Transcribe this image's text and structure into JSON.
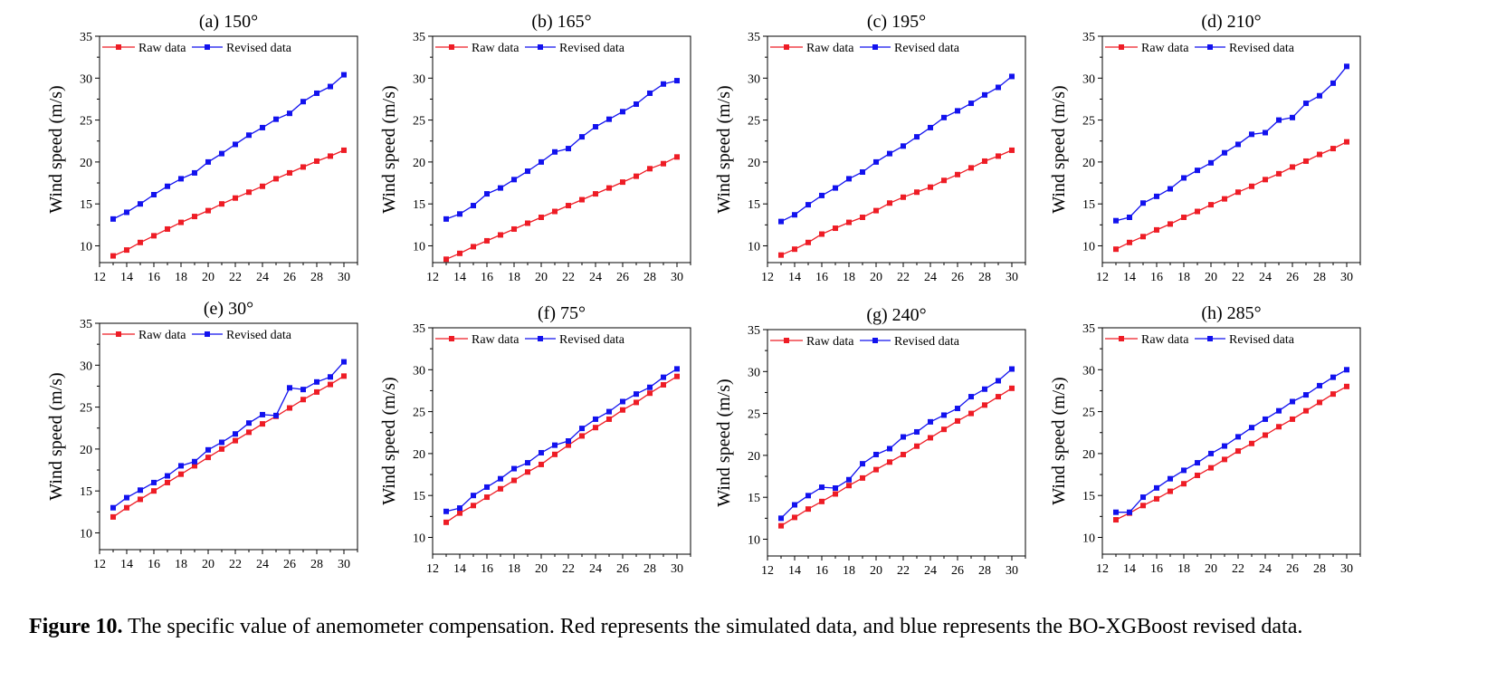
{
  "caption": {
    "label": "Figure 10.",
    "text": " The specific value of anemometer compensation. Red represents the simulated data, and blue represents the BO-XGBoost revised data."
  },
  "colors": {
    "raw": "#ee1c25",
    "revised": "#1212ee"
  },
  "chart_data": [
    {
      "type": "line",
      "title": "(a) 150°",
      "xlabel": "",
      "ylabel": "Wind speed (m/s)",
      "xlim": [
        12,
        31
      ],
      "ylim": [
        8,
        35
      ],
      "grid": false,
      "legend": "top-left",
      "x": [
        13,
        14,
        15,
        16,
        17,
        18,
        19,
        20,
        21,
        22,
        23,
        24,
        25,
        26,
        27,
        28,
        29,
        30
      ],
      "series": [
        {
          "name": "Raw data",
          "values": [
            8.8,
            9.5,
            10.4,
            11.2,
            12.0,
            12.8,
            13.5,
            14.2,
            15.0,
            15.7,
            16.4,
            17.1,
            18.0,
            18.7,
            19.4,
            20.1,
            20.7,
            21.4
          ]
        },
        {
          "name": "Revised data",
          "values": [
            13.2,
            14.0,
            15.0,
            16.1,
            17.1,
            18.0,
            18.7,
            20.0,
            21.0,
            22.1,
            23.2,
            24.1,
            25.1,
            25.8,
            27.2,
            28.2,
            29.0,
            30.4
          ]
        }
      ]
    },
    {
      "type": "line",
      "title": "(b) 165°",
      "xlabel": "",
      "ylabel": "Wind speed (m/s)",
      "xlim": [
        12,
        31
      ],
      "ylim": [
        8,
        35
      ],
      "grid": false,
      "legend": "top-left",
      "x": [
        13,
        14,
        15,
        16,
        17,
        18,
        19,
        20,
        21,
        22,
        23,
        24,
        25,
        26,
        27,
        28,
        29,
        30
      ],
      "series": [
        {
          "name": "Raw data",
          "values": [
            8.4,
            9.1,
            9.9,
            10.6,
            11.3,
            12.0,
            12.7,
            13.4,
            14.1,
            14.8,
            15.5,
            16.2,
            16.9,
            17.6,
            18.3,
            19.2,
            19.8,
            20.6
          ]
        },
        {
          "name": "Revised data",
          "values": [
            13.2,
            13.8,
            14.8,
            16.2,
            16.9,
            17.9,
            18.9,
            20.0,
            21.2,
            21.6,
            23.0,
            24.2,
            25.1,
            26.0,
            26.9,
            28.2,
            29.3,
            29.7
          ]
        }
      ]
    },
    {
      "type": "line",
      "title": "(c) 195°",
      "xlabel": "",
      "ylabel": "Wind speed (m/s)",
      "xlim": [
        12,
        31
      ],
      "ylim": [
        8,
        35
      ],
      "grid": false,
      "legend": "top-left",
      "x": [
        13,
        14,
        15,
        16,
        17,
        18,
        19,
        20,
        21,
        22,
        23,
        24,
        25,
        26,
        27,
        28,
        29,
        30
      ],
      "series": [
        {
          "name": "Raw data",
          "values": [
            8.9,
            9.6,
            10.4,
            11.4,
            12.1,
            12.8,
            13.4,
            14.2,
            15.1,
            15.8,
            16.4,
            17.0,
            17.8,
            18.5,
            19.3,
            20.1,
            20.7,
            21.4
          ]
        },
        {
          "name": "Revised data",
          "values": [
            12.9,
            13.7,
            14.9,
            16.0,
            16.9,
            18.0,
            18.8,
            20.0,
            21.0,
            21.9,
            23.0,
            24.1,
            25.3,
            26.1,
            27.0,
            28.0,
            28.9,
            30.2
          ]
        }
      ]
    },
    {
      "type": "line",
      "title": "(d) 210°",
      "xlabel": "",
      "ylabel": "Wind speed (m/s)",
      "xlim": [
        12,
        31
      ],
      "ylim": [
        8,
        35
      ],
      "grid": false,
      "legend": "top-left",
      "x": [
        13,
        14,
        15,
        16,
        17,
        18,
        19,
        20,
        21,
        22,
        23,
        24,
        25,
        26,
        27,
        28,
        29,
        30
      ],
      "series": [
        {
          "name": "Raw data",
          "values": [
            9.6,
            10.4,
            11.1,
            11.9,
            12.6,
            13.4,
            14.1,
            14.9,
            15.6,
            16.4,
            17.1,
            17.9,
            18.6,
            19.4,
            20.1,
            20.9,
            21.6,
            22.4
          ]
        },
        {
          "name": "Revised data",
          "values": [
            13.0,
            13.4,
            15.1,
            15.9,
            16.8,
            18.1,
            19.0,
            19.9,
            21.1,
            22.1,
            23.3,
            23.5,
            25.0,
            25.3,
            27.0,
            27.9,
            29.4,
            31.4
          ]
        }
      ]
    },
    {
      "type": "line",
      "title": "(e) 30°",
      "xlabel": "",
      "ylabel": "Wind speed (m/s)",
      "xlim": [
        12,
        31
      ],
      "ylim": [
        8,
        35
      ],
      "grid": false,
      "legend": "top-left",
      "x": [
        13,
        14,
        15,
        16,
        17,
        18,
        19,
        20,
        21,
        22,
        23,
        24,
        25,
        26,
        27,
        28,
        29,
        30
      ],
      "series": [
        {
          "name": "Raw data",
          "values": [
            11.9,
            13.0,
            14.0,
            15.0,
            16.0,
            17.0,
            18.0,
            19.0,
            20.0,
            21.0,
            22.0,
            23.0,
            23.9,
            24.9,
            25.9,
            26.8,
            27.7,
            28.7
          ]
        },
        {
          "name": "Revised data",
          "values": [
            13.0,
            14.2,
            15.1,
            16.0,
            16.8,
            18.0,
            18.5,
            19.9,
            20.8,
            21.8,
            23.1,
            24.1,
            24.0,
            27.3,
            27.1,
            28.0,
            28.6,
            30.4
          ]
        }
      ]
    },
    {
      "type": "line",
      "title": "(f) 75°",
      "xlabel": "",
      "ylabel": "Wind speed (m/s)",
      "xlim": [
        12,
        31
      ],
      "ylim": [
        8,
        35
      ],
      "grid": false,
      "legend": "top-left",
      "x": [
        13,
        14,
        15,
        16,
        17,
        18,
        19,
        20,
        21,
        22,
        23,
        24,
        25,
        26,
        27,
        28,
        29,
        30
      ],
      "series": [
        {
          "name": "Raw data",
          "values": [
            11.8,
            12.9,
            13.8,
            14.8,
            15.8,
            16.8,
            17.8,
            18.7,
            19.9,
            21.0,
            22.1,
            23.1,
            24.1,
            25.2,
            26.1,
            27.2,
            28.2,
            29.2
          ]
        },
        {
          "name": "Revised data",
          "values": [
            13.1,
            13.5,
            15.0,
            16.0,
            17.0,
            18.2,
            18.9,
            20.1,
            21.0,
            21.5,
            23.0,
            24.1,
            25.0,
            26.2,
            27.1,
            27.9,
            29.1,
            30.1
          ]
        }
      ]
    },
    {
      "type": "line",
      "title": "(g) 240°",
      "xlabel": "",
      "ylabel": "Wind speed (m/s)",
      "xlim": [
        12,
        31
      ],
      "ylim": [
        8,
        35
      ],
      "grid": false,
      "legend": "top-left",
      "x": [
        13,
        14,
        15,
        16,
        17,
        18,
        19,
        20,
        21,
        22,
        23,
        24,
        25,
        26,
        27,
        28,
        29,
        30
      ],
      "series": [
        {
          "name": "Raw data",
          "values": [
            11.6,
            12.6,
            13.6,
            14.5,
            15.4,
            16.4,
            17.3,
            18.3,
            19.2,
            20.1,
            21.1,
            22.1,
            23.1,
            24.1,
            25.0,
            26.0,
            27.0,
            28.0
          ]
        },
        {
          "name": "Revised data",
          "values": [
            12.5,
            14.1,
            15.2,
            16.2,
            16.1,
            17.1,
            19.0,
            20.1,
            20.8,
            22.2,
            22.8,
            24.0,
            24.8,
            25.6,
            27.0,
            27.9,
            28.9,
            30.3
          ]
        }
      ]
    },
    {
      "type": "line",
      "title": "(h) 285°",
      "xlabel": "",
      "ylabel": "Wind speed (m/s)",
      "xlim": [
        12,
        31
      ],
      "ylim": [
        8,
        35
      ],
      "grid": false,
      "legend": "top-left",
      "x": [
        13,
        14,
        15,
        16,
        17,
        18,
        19,
        20,
        21,
        22,
        23,
        24,
        25,
        26,
        27,
        28,
        29,
        30
      ],
      "series": [
        {
          "name": "Raw data",
          "values": [
            12.1,
            12.9,
            13.8,
            14.6,
            15.5,
            16.4,
            17.4,
            18.3,
            19.3,
            20.3,
            21.2,
            22.2,
            23.2,
            24.1,
            25.1,
            26.1,
            27.1,
            28.0
          ]
        },
        {
          "name": "Revised data",
          "values": [
            13.0,
            13.0,
            14.8,
            15.9,
            17.0,
            18.0,
            18.9,
            20.0,
            20.9,
            22.0,
            23.1,
            24.1,
            25.1,
            26.2,
            27.0,
            28.1,
            29.1,
            30.0
          ]
        }
      ]
    }
  ]
}
